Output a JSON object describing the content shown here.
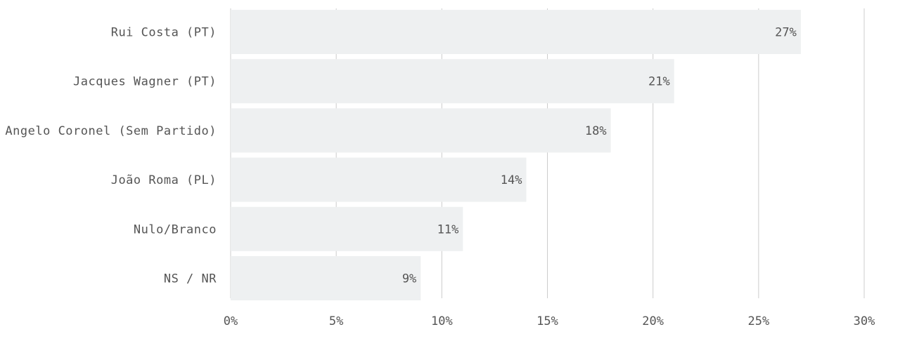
{
  "chart_data": {
    "type": "bar",
    "orientation": "horizontal",
    "title": "",
    "xlabel": "",
    "ylabel": "",
    "categories": [
      "Rui Costa (PT)",
      "Jacques Wagner (PT)",
      "Angelo Coronel (Sem Partido)",
      "João Roma (PL)",
      "Nulo/Branco",
      "NS / NR"
    ],
    "values": [
      27,
      21,
      18,
      14,
      11,
      9
    ],
    "value_labels": [
      "27%",
      "21%",
      "18%",
      "14%",
      "11%",
      "9%"
    ],
    "xlim": [
      0,
      30
    ],
    "x_ticks": [
      0,
      5,
      10,
      15,
      20,
      25,
      30
    ],
    "x_tick_labels": [
      "0%",
      "5%",
      "10%",
      "15%",
      "20%",
      "25%",
      "30%"
    ],
    "grid": "vertical",
    "legend": "none",
    "colors": {
      "bar": "#eef0f1",
      "grid": "#cccccc",
      "text": "#555555",
      "background": "#ffffff"
    }
  }
}
